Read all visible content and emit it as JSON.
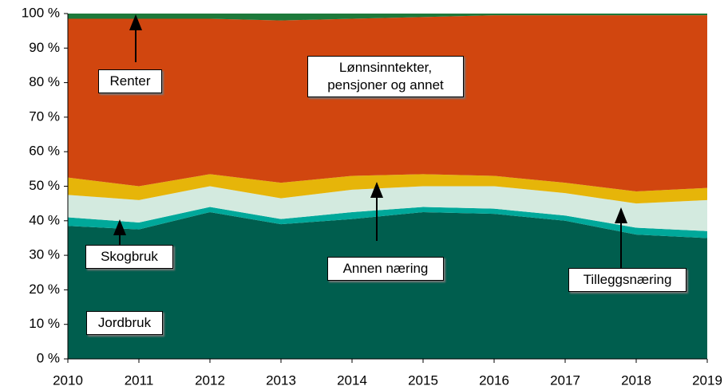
{
  "chart_data": {
    "type": "area",
    "stacked": true,
    "x": [
      2010,
      2011,
      2012,
      2013,
      2014,
      2015,
      2016,
      2017,
      2018,
      2019
    ],
    "xlim": [
      2010,
      2019
    ],
    "xticks": [
      2010,
      2011,
      2012,
      2013,
      2014,
      2015,
      2016,
      2017,
      2018,
      2019
    ],
    "ylim": [
      0,
      100
    ],
    "yticks": [
      {
        "value": 0,
        "label": "0 %"
      },
      {
        "value": 10,
        "label": "10 %"
      },
      {
        "value": 20,
        "label": "20 %"
      },
      {
        "value": 30,
        "label": "30 %"
      },
      {
        "value": 40,
        "label": "40 %"
      },
      {
        "value": 50,
        "label": "50 %"
      },
      {
        "value": 60,
        "label": "60 %"
      },
      {
        "value": 70,
        "label": "70 %"
      },
      {
        "value": 80,
        "label": "80 %"
      },
      {
        "value": 90,
        "label": "90 %"
      },
      {
        "value": 100,
        "label": "100 %"
      }
    ],
    "series": [
      {
        "name": "Jordbruk",
        "color": "#005e4e",
        "values": [
          38.5,
          37.5,
          42.5,
          39,
          40.5,
          42.5,
          42,
          40,
          36,
          35
        ]
      },
      {
        "name": "Skogbruk",
        "color": "#00a89a",
        "values": [
          2.5,
          2,
          1.5,
          1.5,
          2,
          1.5,
          1.5,
          1.5,
          2,
          2
        ]
      },
      {
        "name": "Tilleggsnæring",
        "color": "#d3eadf",
        "values": [
          6.5,
          6.5,
          6,
          6,
          6.5,
          6,
          6.5,
          6.5,
          7,
          9
        ]
      },
      {
        "name": "Annen næring",
        "color": "#e6b509",
        "values": [
          5,
          4,
          3.5,
          4.5,
          4,
          3.5,
          3,
          3,
          3.5,
          3.5
        ]
      },
      {
        "name": "Lønnsinntekter, pensjoner og annet",
        "color": "#d1460f",
        "values": [
          46,
          48.5,
          45,
          47,
          45.5,
          45.5,
          46.5,
          48.5,
          51,
          50
        ]
      },
      {
        "name": "Renter",
        "color": "#1d7a3b",
        "values": [
          1.5,
          1.5,
          1.5,
          2,
          1.5,
          1,
          0.5,
          0.5,
          0.5,
          0.5
        ]
      }
    ]
  }
}
